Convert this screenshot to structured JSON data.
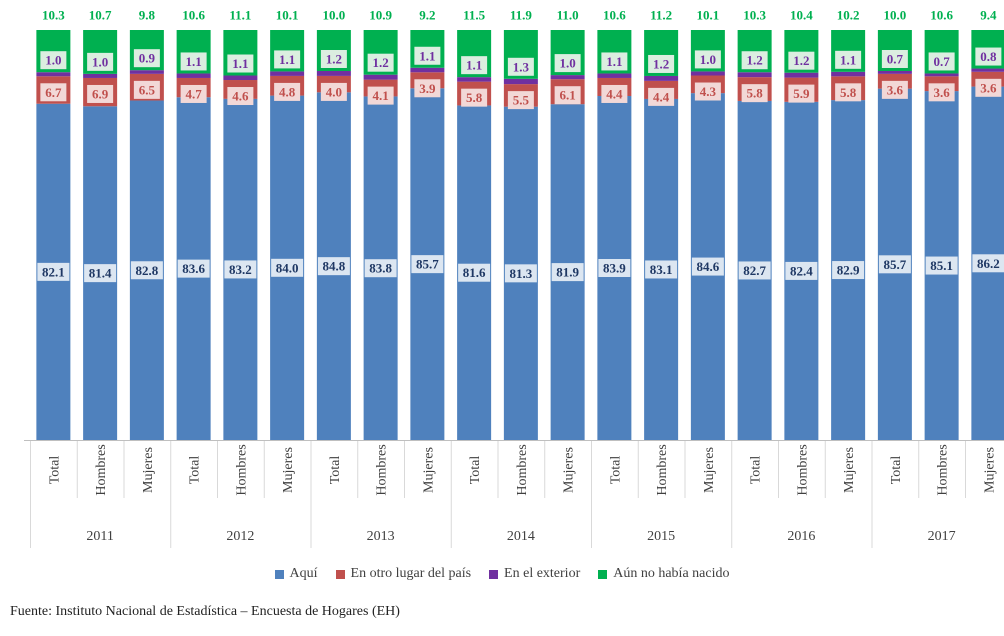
{
  "chart_data": {
    "type": "bar",
    "stacked": true,
    "percent_stacked": true,
    "categories": [
      "Total",
      "Hombres",
      "Mujeres",
      "Total",
      "Hombres",
      "Mujeres",
      "Total",
      "Hombres",
      "Mujeres",
      "Total",
      "Hombres",
      "Mujeres",
      "Total",
      "Hombres",
      "Mujeres",
      "Total",
      "Hombres",
      "Mujeres",
      "Total",
      "Hombres",
      "Mujeres"
    ],
    "groups": [
      "2011",
      "2012",
      "2013",
      "2014",
      "2015",
      "2016",
      "2017"
    ],
    "series": [
      {
        "name": "Aquí",
        "color": "#4f81bd",
        "label_color": "#1f3864",
        "values": [
          82.1,
          81.4,
          82.8,
          83.6,
          83.2,
          84.0,
          84.8,
          83.8,
          85.7,
          81.6,
          81.3,
          81.9,
          83.9,
          83.1,
          84.6,
          82.7,
          82.4,
          82.9,
          85.7,
          85.1,
          86.2
        ]
      },
      {
        "name": "En otro lugar del país",
        "color": "#c0504d",
        "label_color": "#c0504d",
        "values": [
          6.7,
          6.9,
          6.5,
          4.7,
          4.6,
          4.8,
          4.0,
          4.1,
          3.9,
          5.8,
          5.5,
          6.1,
          4.4,
          4.4,
          4.3,
          5.8,
          5.9,
          5.8,
          3.6,
          3.6,
          3.6
        ]
      },
      {
        "name": "En el exterior",
        "color": "#7030a0",
        "label_color": "#7030a0",
        "values": [
          1.0,
          1.0,
          0.9,
          1.1,
          1.1,
          1.1,
          1.2,
          1.2,
          1.1,
          1.1,
          1.3,
          1.0,
          1.1,
          1.2,
          1.0,
          1.2,
          1.2,
          1.1,
          0.7,
          0.7,
          0.8
        ]
      },
      {
        "name": "Aún no había nacido",
        "color": "#00b050",
        "label_color": "#00b050",
        "values": [
          10.3,
          10.7,
          9.8,
          10.6,
          11.1,
          10.1,
          10.0,
          10.9,
          9.2,
          11.5,
          11.9,
          11.0,
          10.6,
          11.2,
          10.1,
          10.3,
          10.4,
          10.2,
          10.0,
          10.6,
          9.4
        ]
      }
    ],
    "ylim": [
      0,
      100
    ],
    "grid": false,
    "legend_position": "bottom"
  },
  "source_text": "Fuente: Instituto Nacional de Estadística – Encuesta de Hogares (EH)"
}
